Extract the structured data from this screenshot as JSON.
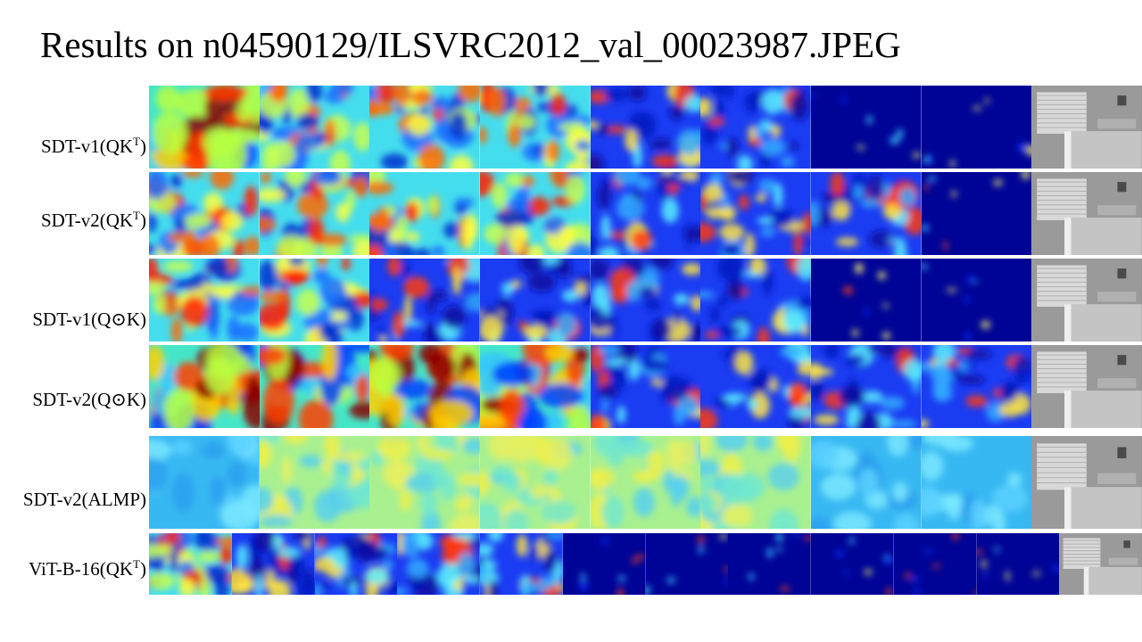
{
  "title": "Results on n04590129/ILSVRC2012_val_00023987.JPEG",
  "rows": [
    {
      "id": "sdt-v1-qkt",
      "label_main": "SDT-v1(QK",
      "label_sup": "T",
      "label_end": ")",
      "cells": 8,
      "maps": [
        "hot",
        "mid",
        "mid",
        "mid",
        "cool",
        "cool",
        "cold",
        "cold"
      ]
    },
    {
      "id": "sdt-v2-qkt",
      "label_main": "SDT-v2(QK",
      "label_sup": "T",
      "label_end": ")",
      "cells": 8,
      "maps": [
        "mid",
        "mid",
        "mid",
        "mid",
        "cool",
        "cool",
        "cool",
        "cold"
      ]
    },
    {
      "id": "sdt-v1-qk",
      "label_main": "SDT-v1(Q⊙K)",
      "label_sup": "",
      "label_end": "",
      "cells": 8,
      "maps": [
        "mid",
        "mid",
        "cool",
        "cool",
        "cool",
        "cool",
        "cold",
        "cold"
      ]
    },
    {
      "id": "sdt-v2-qk",
      "label_main": "SDT-v2(Q⊙K)",
      "label_sup": "",
      "label_end": "",
      "cells": 8,
      "maps": [
        "hot",
        "hot",
        "hot",
        "hot",
        "cool",
        "cool",
        "cool",
        "cool"
      ]
    },
    {
      "id": "sdt-v2-almp",
      "label_main": "SDT-v2(ALMP)",
      "label_sup": "",
      "label_end": "",
      "cells": 8,
      "maps": [
        "flat-cyan",
        "flat-yellow",
        "flat-yellow",
        "flat-yellow",
        "flat-yellow",
        "flat-yellow",
        "flat-cyan",
        "flat-cyan"
      ]
    },
    {
      "id": "vit-b-16-qkt",
      "label_main": "ViT-B-16(QK",
      "label_sup": "T",
      "label_end": ")",
      "cells": 11,
      "maps": [
        "mid",
        "cool",
        "cool",
        "cool",
        "cool",
        "cold",
        "cold",
        "cold",
        "cold",
        "cold",
        "cold"
      ]
    }
  ],
  "colors": {
    "jet_dark_blue": "#00007f",
    "jet_blue": "#0000ff",
    "jet_cyan": "#00ffff",
    "jet_yellow": "#ffff00",
    "jet_red": "#ff0000",
    "jet_dark_red": "#7f0000"
  }
}
